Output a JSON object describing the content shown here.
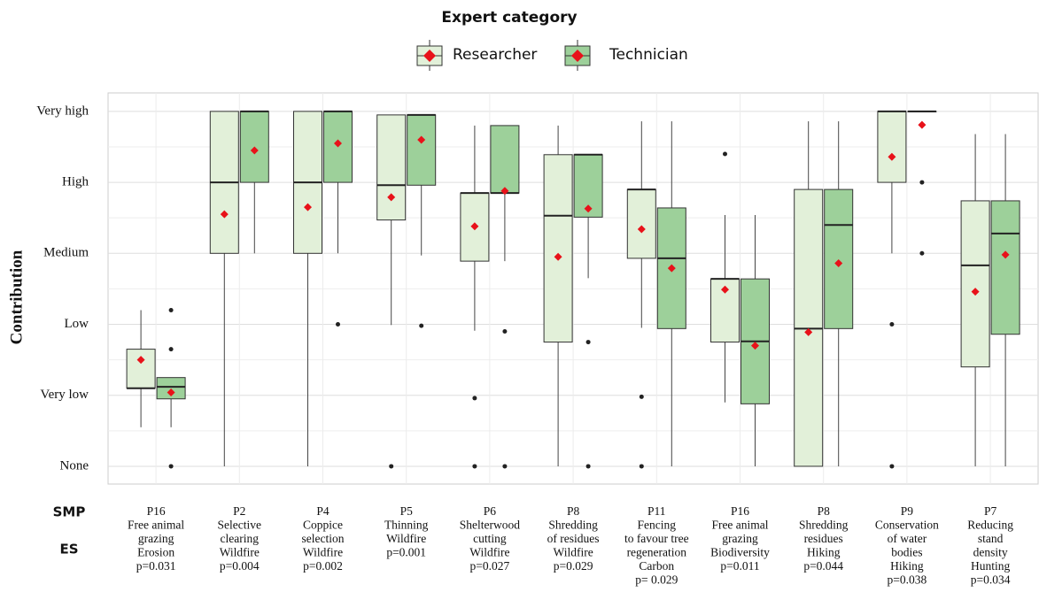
{
  "chart_data": {
    "type": "box",
    "legend_title": "Expert category",
    "y_label": "Contribution",
    "row_labels": [
      "SMP",
      "ES"
    ],
    "smp": [
      [
        "P16",
        "Free animal",
        "grazing"
      ],
      [
        "P2",
        "Selective",
        "clearing"
      ],
      [
        "P4",
        "Coppice",
        "selection"
      ],
      [
        "P5",
        "Thinning"
      ],
      [
        "P6",
        "Shelterwood",
        "cutting"
      ],
      [
        "P8",
        "Shredding",
        "of residues"
      ],
      [
        "P11",
        "Fencing",
        "to favour tree",
        "regeneration"
      ],
      [
        "P16",
        "Free animal",
        "grazing"
      ],
      [
        "P8",
        "Shredding",
        "residues"
      ],
      [
        "P9",
        "Conservation",
        "of water",
        "bodies"
      ],
      [
        "P7",
        "Reducing",
        "stand",
        "density"
      ]
    ],
    "es": [
      "Erosion",
      "Wildfire",
      "Wildfire",
      "Wildfire",
      "Wildfire",
      "Wildfire",
      "Carbon",
      "Biodiversity",
      "Hiking",
      "Hiking",
      "Hunting"
    ],
    "p_values": [
      "p=0.031",
      "p=0.004",
      "p=0.002",
      "p=0.001",
      "p=0.027",
      "p=0.029",
      "p= 0.029",
      "p=0.011",
      "p=0.044",
      "p=0.038",
      "p=0.034"
    ],
    "ylim": [
      -0.25,
      5.26
    ],
    "yticks": [
      {
        "value": 0,
        "label": "None"
      },
      {
        "value": 1,
        "label": "Very low"
      },
      {
        "value": 2,
        "label": "Low"
      },
      {
        "value": 3,
        "label": "Medium"
      },
      {
        "value": 4,
        "label": "High"
      },
      {
        "value": 5,
        "label": "Very high"
      }
    ],
    "grid": true,
    "mean_color": "#e8121a",
    "series": [
      {
        "name": "Researcher",
        "color": "#e2f0d9",
        "boxes": [
          {
            "low": 0.55,
            "q1": 1.1,
            "median": 1.1,
            "q3": 1.65,
            "high": 2.2,
            "mean": 1.5,
            "outliers": []
          },
          {
            "low": 0,
            "q1": 3,
            "median": 4,
            "q3": 5,
            "high": 5,
            "mean": 3.55,
            "outliers": []
          },
          {
            "low": 0,
            "q1": 3,
            "median": 4,
            "q3": 5,
            "high": 5,
            "mean": 3.65,
            "outliers": []
          },
          {
            "low": 1.99,
            "q1": 3.47,
            "median": 3.96,
            "q3": 4.95,
            "high": 4.95,
            "mean": 3.79,
            "outliers": [
              0
            ]
          },
          {
            "low": 1.91,
            "q1": 2.89,
            "median": 3.85,
            "q3": 3.85,
            "high": 4.8,
            "mean": 3.38,
            "outliers": [
              0.96,
              0
            ]
          },
          {
            "low": 0,
            "q1": 1.75,
            "median": 3.53,
            "q3": 4.39,
            "high": 4.8,
            "mean": 2.95,
            "outliers": []
          },
          {
            "low": 1.95,
            "q1": 2.93,
            "median": 3.9,
            "q3": 3.9,
            "high": 4.86,
            "mean": 3.34,
            "outliers": [
              0.98,
              0
            ]
          },
          {
            "low": 0.9,
            "q1": 1.75,
            "median": 2.64,
            "q3": 2.64,
            "high": 3.54,
            "mean": 2.49,
            "outliers": [
              4.4
            ]
          },
          {
            "low": 0,
            "q1": 0,
            "median": 1.94,
            "q3": 3.9,
            "high": 4.86,
            "mean": 1.89,
            "outliers": []
          },
          {
            "low": 3,
            "q1": 4,
            "median": 5,
            "q3": 5,
            "high": 5,
            "mean": 4.36,
            "outliers": [
              2,
              0
            ]
          },
          {
            "low": 0,
            "q1": 1.4,
            "median": 2.83,
            "q3": 3.74,
            "high": 4.68,
            "mean": 2.46,
            "outliers": []
          }
        ]
      },
      {
        "name": "Technician",
        "color": "#9dd09a",
        "boxes": [
          {
            "low": 0.55,
            "q1": 0.95,
            "median": 1.12,
            "q3": 1.25,
            "high": 1.25,
            "mean": 1.04,
            "outliers": [
              2.2,
              1.65,
              0
            ]
          },
          {
            "low": 3,
            "q1": 4,
            "median": 5,
            "q3": 5,
            "high": 5,
            "mean": 4.45,
            "outliers": []
          },
          {
            "low": 3,
            "q1": 4,
            "median": 5,
            "q3": 5,
            "high": 5,
            "mean": 4.55,
            "outliers": [
              2
            ]
          },
          {
            "low": 2.97,
            "q1": 3.96,
            "median": 4.95,
            "q3": 4.95,
            "high": 4.95,
            "mean": 4.6,
            "outliers": [
              1.98
            ]
          },
          {
            "low": 2.89,
            "q1": 3.85,
            "median": 3.85,
            "q3": 4.8,
            "high": 4.8,
            "mean": 3.88,
            "outliers": [
              1.9,
              0
            ]
          },
          {
            "low": 2.65,
            "q1": 3.51,
            "median": 4.39,
            "q3": 4.39,
            "high": 4.39,
            "mean": 3.63,
            "outliers": [
              1.75,
              0
            ]
          },
          {
            "low": 0,
            "q1": 1.94,
            "median": 2.93,
            "q3": 3.64,
            "high": 4.86,
            "mean": 2.79,
            "outliers": []
          },
          {
            "low": 0,
            "q1": 0.88,
            "median": 1.76,
            "q3": 2.64,
            "high": 3.54,
            "mean": 1.7,
            "outliers": []
          },
          {
            "low": 0,
            "q1": 1.94,
            "median": 3.4,
            "q3": 3.9,
            "high": 4.86,
            "mean": 2.86,
            "outliers": []
          },
          {
            "low": 5,
            "q1": 5,
            "median": 5,
            "q3": 5,
            "high": 5,
            "mean": 4.81,
            "outliers": [
              4,
              3
            ]
          },
          {
            "low": 0,
            "q1": 1.86,
            "median": 3.28,
            "q3": 3.74,
            "high": 4.68,
            "mean": 2.98,
            "outliers": []
          }
        ]
      }
    ]
  }
}
